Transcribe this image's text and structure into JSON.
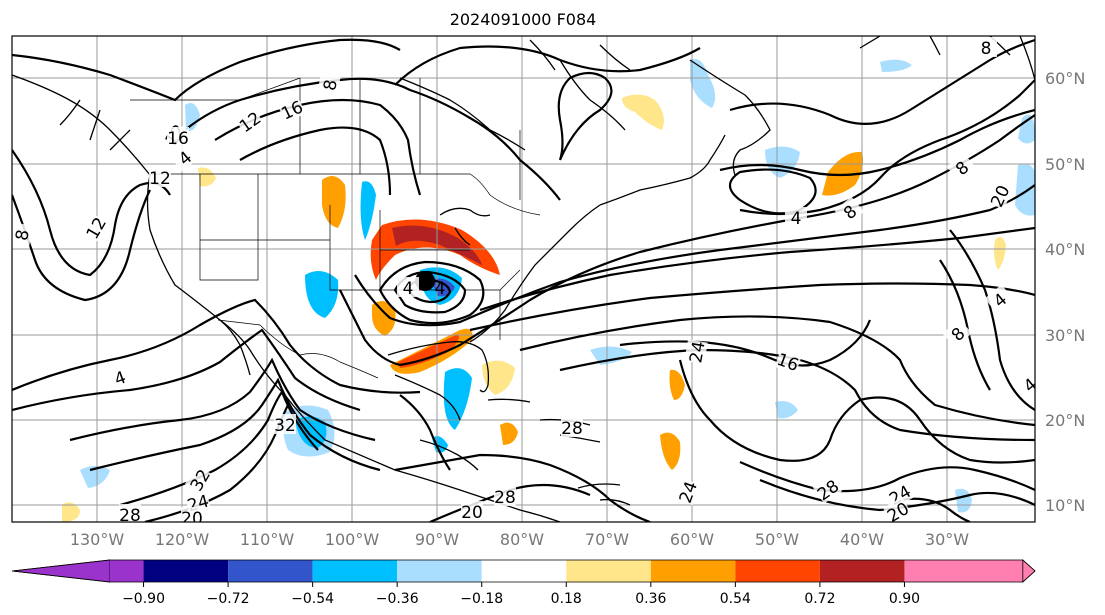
{
  "title": "2024091000 F084",
  "map": {
    "projection": "PlateCarree",
    "lon_range": [
      -140,
      -25
    ],
    "lat_range": [
      8,
      65
    ],
    "lon_ticks": [
      "130°W",
      "120°W",
      "110°W",
      "100°W",
      "90°W",
      "80°W",
      "70°W",
      "60°W",
      "50°W",
      "40°W",
      "30°W"
    ],
    "lat_ticks": [
      "60°N",
      "50°N",
      "40°N",
      "30°N",
      "20°N",
      "10°N"
    ],
    "gridlines": true,
    "lat_tick_side": "right"
  },
  "colorbar": {
    "orientation": "horizontal",
    "extend": "both",
    "labels": [
      "−0.90",
      "−0.72",
      "−0.54",
      "−0.36",
      "−0.18",
      "0.18",
      "0.36",
      "0.54",
      "0.72",
      "0.90"
    ],
    "colors": {
      "under": "#9a33cc",
      "bins": [
        "#000080",
        "#3355cc",
        "#00bfff",
        "#aadeff",
        "#ffffff",
        "#ffe68a",
        "#ffa000",
        "#ff4500",
        "#b22222"
      ],
      "over": "#ff7fb0"
    }
  },
  "contour_labels": [
    "8",
    "12",
    "16",
    "8",
    "4",
    "12",
    "8",
    "12",
    "4",
    "16",
    "12",
    "20",
    "8",
    "4",
    "8",
    "8",
    "16",
    "24",
    "28",
    "24",
    "20",
    "28",
    "32",
    "24",
    "28",
    "20",
    "32",
    "24",
    "28",
    "20",
    "4",
    "4",
    "4"
  ],
  "features": {
    "marker": "black-dot",
    "cyclone_label": "4"
  }
}
